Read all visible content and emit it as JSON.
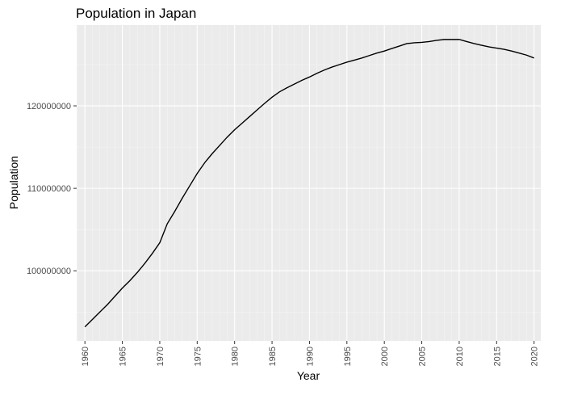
{
  "chart_data": {
    "type": "line",
    "title": "Population in Japan",
    "xlabel": "Year",
    "ylabel": "Population",
    "xlim": [
      1958.9,
      2020.9
    ],
    "ylim": [
      91500000,
      129800000
    ],
    "x_ticks": [
      "1960",
      "1965",
      "1970",
      "1975",
      "1980",
      "1985",
      "1990",
      "1995",
      "2000",
      "2005",
      "2010",
      "2015",
      "2020"
    ],
    "y_ticks": [
      "100000000",
      "110000000",
      "120000000"
    ],
    "grid": true,
    "legend": "none",
    "series": [
      {
        "x": [
          1960,
          1961,
          1962,
          1963,
          1964,
          1965,
          1966,
          1967,
          1968,
          1969,
          1970,
          1971,
          1972,
          1973,
          1974,
          1975,
          1976,
          1977,
          1978,
          1979,
          1980,
          1981,
          1982,
          1983,
          1984,
          1985,
          1986,
          1987,
          1988,
          1989,
          1990,
          1991,
          1992,
          1993,
          1994,
          1995,
          1996,
          1997,
          1998,
          1999,
          2000,
          2001,
          2002,
          2003,
          2004,
          2005,
          2006,
          2007,
          2008,
          2009,
          2010,
          2011,
          2012,
          2013,
          2014,
          2015,
          2016,
          2017,
          2018,
          2019,
          2020
        ],
        "y": [
          93200000,
          94100000,
          95000000,
          95900000,
          96900000,
          97900000,
          98800000,
          99800000,
          100900000,
          102100000,
          103400000,
          105700000,
          107200000,
          108800000,
          110300000,
          111800000,
          113100000,
          114200000,
          115200000,
          116200000,
          117100000,
          117900000,
          118700000,
          119500000,
          120300000,
          121050000,
          121700000,
          122200000,
          122650000,
          123100000,
          123500000,
          123950000,
          124350000,
          124700000,
          125000000,
          125300000,
          125550000,
          125800000,
          126100000,
          126400000,
          126650000,
          126950000,
          127250000,
          127550000,
          127650000,
          127700000,
          127800000,
          127950000,
          128050000,
          128050000,
          128050000,
          127800000,
          127550000,
          127350000,
          127150000,
          127000000,
          126850000,
          126650000,
          126400000,
          126150000,
          125800000
        ]
      }
    ],
    "colors": {
      "panel": "#ebebeb",
      "grid_major": "#ffffff",
      "grid_minor": "#f5f5f5",
      "line": "#000000",
      "tick_text": "#4d4d4d",
      "tick_mark": "#333333"
    }
  }
}
